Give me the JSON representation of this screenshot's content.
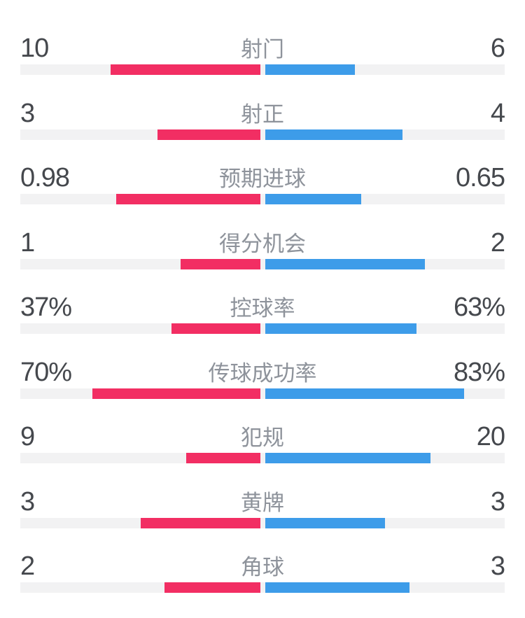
{
  "panel": {
    "background": "#FFFFFF"
  },
  "colors": {
    "home_bar": "#F22E63",
    "away_bar": "#3D9CE9",
    "track": "#F2F2F3",
    "value_text": "#45484D",
    "label_text": "#8E939B"
  },
  "chart_data": {
    "type": "bar",
    "variant": "head-to-head horizontal comparison; home bar extends left from center, away bar extends right from center",
    "grid": false,
    "legend_position": "none",
    "categories": [
      "射门",
      "射正",
      "预期进球",
      "得分机会",
      "控球率",
      "传球成功率",
      "犯规",
      "黄牌",
      "角球"
    ],
    "series": [
      {
        "name": "home",
        "color": "#F22E63",
        "values": [
          10,
          3,
          0.98,
          1,
          37,
          70,
          9,
          3,
          2
        ]
      },
      {
        "name": "away",
        "color": "#3D9CE9",
        "values": [
          6,
          4,
          0.65,
          2,
          63,
          83,
          20,
          3,
          3
        ]
      }
    ],
    "rows": [
      {
        "label": "射门",
        "home_display": "10",
        "away_display": "6",
        "home": 10,
        "away": 6,
        "percent": false
      },
      {
        "label": "射正",
        "home_display": "3",
        "away_display": "4",
        "home": 3,
        "away": 4,
        "percent": false
      },
      {
        "label": "预期进球",
        "home_display": "0.98",
        "away_display": "0.65",
        "home": 0.98,
        "away": 0.65,
        "percent": false
      },
      {
        "label": "得分机会",
        "home_display": "1",
        "away_display": "2",
        "home": 1,
        "away": 2,
        "percent": false
      },
      {
        "label": "控球率",
        "home_display": "37%",
        "away_display": "63%",
        "home": 37,
        "away": 63,
        "percent": true
      },
      {
        "label": "传球成功率",
        "home_display": "70%",
        "away_display": "83%",
        "home": 70,
        "away": 83,
        "percent": true
      },
      {
        "label": "犯规",
        "home_display": "9",
        "away_display": "20",
        "home": 9,
        "away": 20,
        "percent": false
      },
      {
        "label": "黄牌",
        "home_display": "3",
        "away_display": "3",
        "home": 3,
        "away": 3,
        "percent": false
      },
      {
        "label": "角球",
        "home_display": "2",
        "away_display": "3",
        "home": 2,
        "away": 3,
        "percent": false
      }
    ],
    "bar_length_rule": "bar width = fraction * 342.5px; fraction = value/100 for percent rows, value/(home+away) for count rows; bars anchored 3.5px from track center"
  }
}
